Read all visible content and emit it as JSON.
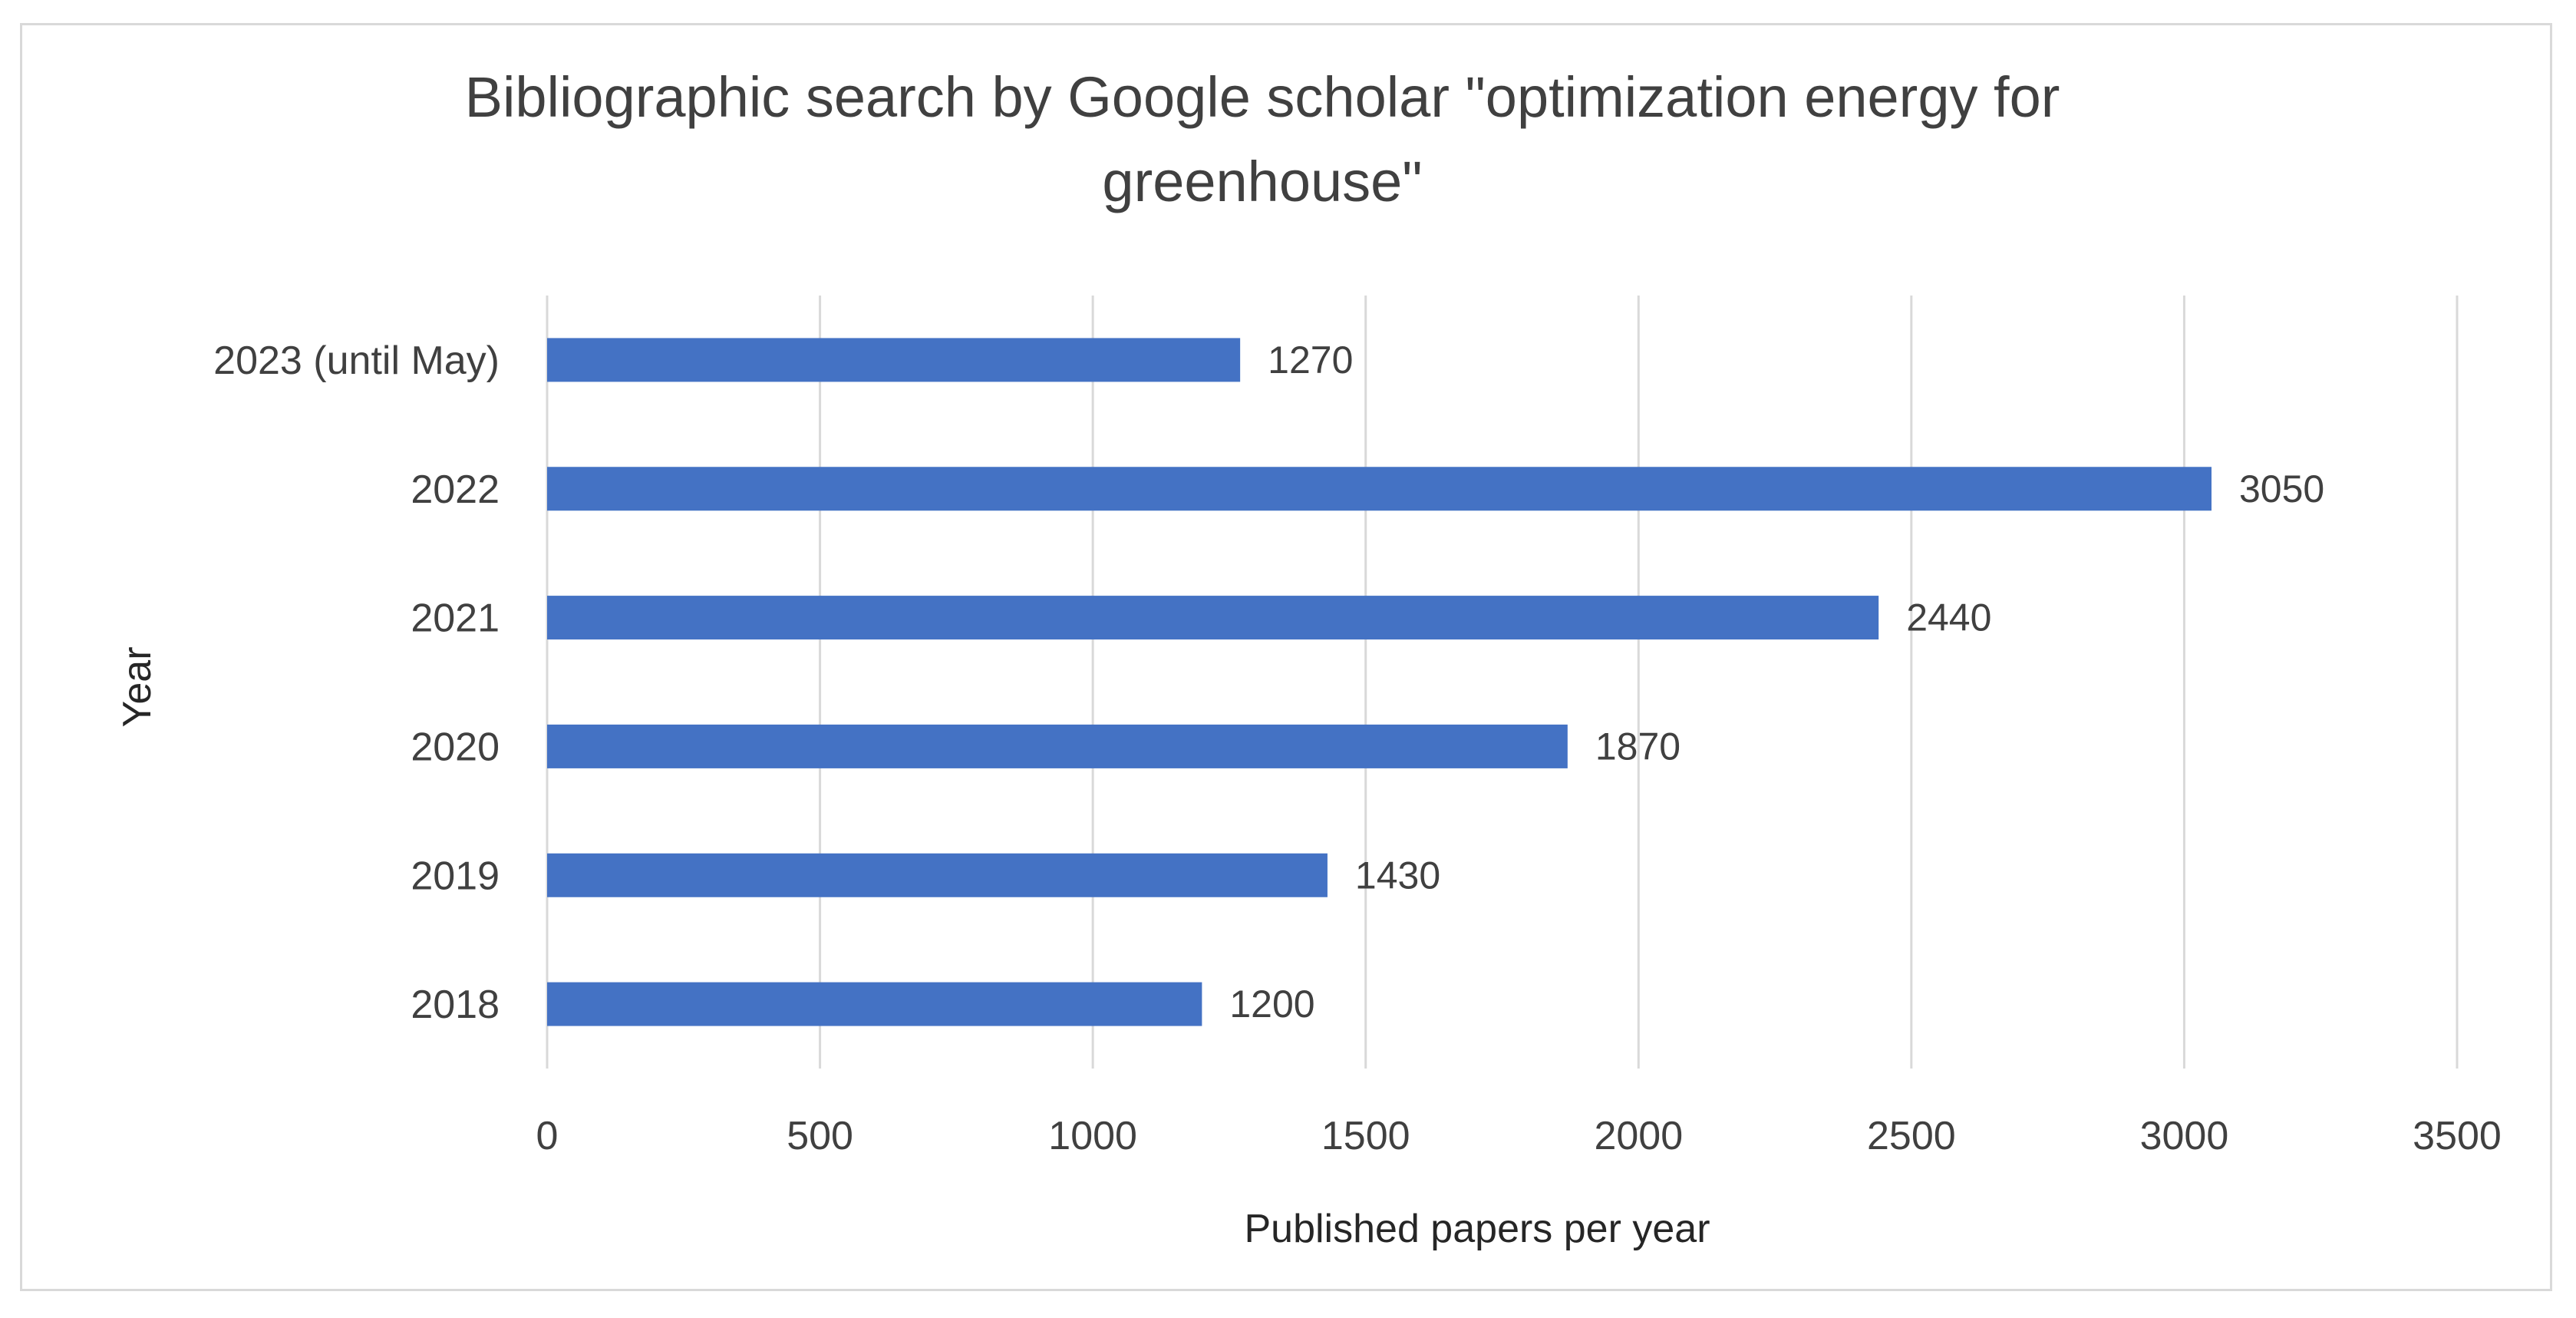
{
  "chart_data": {
    "type": "bar",
    "orientation": "horizontal",
    "title_lines": [
      "Bibliographic search by Google scholar \"optimization energy for",
      "greenhouse\""
    ],
    "xlabel": "Published papers per year",
    "ylabel": "Year",
    "categories": [
      "2018",
      "2019",
      "2020",
      "2021",
      "2022",
      "2023 (until May)"
    ],
    "values": [
      1200,
      1430,
      1870,
      2440,
      3050,
      1270
    ],
    "xlim": [
      0,
      3500
    ],
    "xticks": [
      "0",
      "500",
      "1000",
      "1500",
      "2000",
      "2500",
      "3000",
      "3500"
    ],
    "grid": "vertical",
    "legend": "none",
    "bar_color": "#4472C4",
    "grid_color": "#d9d9d9"
  }
}
